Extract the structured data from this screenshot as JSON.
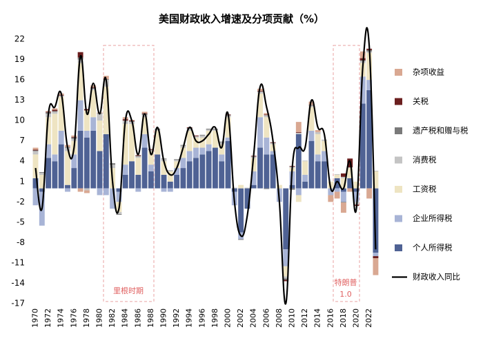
{
  "chart_data": {
    "type": "bar",
    "title": "美国财政收入增速及分项贡献（%）",
    "x": [
      1970,
      1971,
      1972,
      1973,
      1974,
      1975,
      1976,
      1977,
      1978,
      1979,
      1980,
      1981,
      1982,
      1983,
      1984,
      1985,
      1986,
      1987,
      1988,
      1989,
      1990,
      1991,
      1992,
      1993,
      1994,
      1995,
      1996,
      1997,
      1998,
      1999,
      2000,
      2001,
      2002,
      2003,
      2004,
      2005,
      2006,
      2007,
      2008,
      2009,
      2010,
      2011,
      2012,
      2013,
      2014,
      2015,
      2016,
      2017,
      2018,
      2019,
      2020,
      2021,
      2022,
      2023
    ],
    "xlim": [
      1969.3,
      2023.6
    ],
    "xticks": [
      1970,
      1972,
      1974,
      1976,
      1978,
      1980,
      1982,
      1984,
      1986,
      1988,
      1990,
      1992,
      1994,
      1996,
      1998,
      2000,
      2002,
      2004,
      2006,
      2008,
      2010,
      2012,
      2014,
      2016,
      2018,
      2020,
      2022
    ],
    "ylim": [
      -17,
      22
    ],
    "yticks": [
      22,
      19,
      16,
      13,
      10,
      7,
      4,
      1,
      -2,
      -5,
      -8,
      -11,
      -14,
      -17
    ],
    "stacked": true,
    "series": [
      {
        "name": "杂项收益",
        "color": "#d9a892",
        "values": [
          0.3,
          0,
          0.1,
          0.2,
          0.2,
          0.3,
          0.2,
          -0.5,
          -0.4,
          0.3,
          0.1,
          0.5,
          0,
          0,
          0.3,
          0.1,
          0,
          0.2,
          0,
          0,
          0,
          0,
          0,
          0,
          0,
          0,
          0,
          0,
          0,
          0,
          0,
          0,
          0,
          0,
          0,
          0.3,
          0.2,
          0,
          0,
          0,
          0,
          1.5,
          0,
          0.5,
          0.3,
          0,
          -1,
          -1,
          -1.5,
          -0.5,
          0,
          1,
          -1.5,
          -2.5
        ]
      },
      {
        "name": "关税",
        "color": "#6b1f1f",
        "values": [
          0.1,
          0,
          0.1,
          0.2,
          0.1,
          0,
          0.1,
          0.8,
          0.2,
          0.1,
          0,
          0,
          0,
          0,
          0.2,
          0.1,
          0.1,
          0.1,
          0.1,
          0,
          0,
          0,
          0,
          0,
          0.1,
          0.1,
          0,
          0,
          0,
          0,
          0.1,
          0,
          0,
          0,
          0.1,
          0.1,
          0.1,
          0.1,
          0,
          -0.2,
          0.1,
          0.1,
          0,
          0,
          0,
          0,
          0,
          0,
          0.5,
          1.3,
          -0.2,
          0.3,
          0.2,
          -0.3
        ]
      },
      {
        "name": "遗产税和赠与税",
        "color": "#7a7a7a",
        "values": [
          0.1,
          0.1,
          0.2,
          0.1,
          0,
          0.1,
          0.2,
          0.3,
          0,
          0.1,
          0.1,
          0.1,
          0.2,
          -0.1,
          0,
          0.1,
          0.1,
          0.2,
          0,
          0.1,
          0.1,
          0,
          0.1,
          0.1,
          0.1,
          0,
          0.1,
          0.1,
          0.1,
          0.1,
          0.1,
          0,
          -0.1,
          0,
          0,
          0,
          -0.1,
          0,
          0,
          -0.2,
          -0.2,
          0,
          0,
          0.1,
          0,
          0,
          0,
          0,
          -0.1,
          0,
          0,
          0.1,
          0.2,
          0
        ]
      },
      {
        "name": "消费税",
        "color": "#c4c4c4",
        "values": [
          0.5,
          0.3,
          0.5,
          0.3,
          0.2,
          0.5,
          0.3,
          0.5,
          -0.3,
          0.2,
          1,
          1,
          0.5,
          -0.3,
          0.5,
          0.3,
          0.2,
          0.3,
          0.2,
          0.2,
          0.3,
          0.2,
          0.2,
          0.3,
          0.3,
          0.2,
          0.3,
          0.2,
          0.2,
          0.3,
          0.2,
          0.1,
          0,
          0.1,
          0.2,
          0.3,
          0.3,
          0.2,
          0,
          -0.3,
          0.2,
          0.2,
          0.1,
          0.2,
          0.3,
          0.2,
          0,
          0.1,
          0.2,
          0.1,
          -0.4,
          0.3,
          0.2,
          0.1
        ]
      },
      {
        "name": "工资税",
        "color": "#eee4c2",
        "values": [
          3.5,
          2,
          4,
          6,
          5,
          5,
          2,
          5.5,
          3,
          4,
          4.5,
          7,
          3,
          -1.5,
          6,
          5.5,
          2.5,
          2.5,
          2,
          3.5,
          2,
          1.5,
          1,
          1.5,
          3,
          1.5,
          1.5,
          2,
          2.5,
          1.5,
          3,
          0,
          0.5,
          0,
          2,
          3.5,
          3,
          1,
          0.5,
          -1.5,
          0.5,
          -1,
          2,
          3.5,
          3,
          1.5,
          1,
          0.5,
          1.5,
          1.5,
          1,
          2,
          4,
          2.5
        ]
      },
      {
        "name": "企业所得税",
        "color": "#a8b4d6",
        "values": [
          -2.5,
          -5,
          2,
          1,
          2,
          -0.5,
          2,
          4.5,
          1,
          2,
          -1,
          -1,
          -3,
          -1.5,
          1.5,
          0,
          -0.5,
          2,
          1,
          0,
          -0.5,
          -0.5,
          1,
          1.5,
          1.5,
          1.5,
          1,
          1,
          0,
          1,
          0.5,
          -2,
          -1,
          0,
          2,
          4.5,
          2.5,
          0.5,
          -2,
          -2.5,
          2,
          -1,
          1,
          1.5,
          1,
          1.5,
          -1,
          -0.5,
          -1.5,
          0,
          -1.5,
          4,
          1.5,
          -0.5
        ]
      },
      {
        "name": "个人所得税",
        "color": "#4f6294",
        "values": [
          1.5,
          -0.5,
          4.5,
          4,
          6.5,
          0.5,
          3,
          8.5,
          7.5,
          8.5,
          5.5,
          8,
          0,
          -0.5,
          2,
          4,
          2,
          6,
          2.5,
          5,
          2,
          1,
          2,
          3,
          4,
          4.5,
          5,
          5.5,
          6,
          4,
          7,
          -0.5,
          -6.5,
          -3,
          0.5,
          6,
          5,
          5,
          0,
          -9,
          0.5,
          8,
          1,
          7,
          4,
          4,
          0,
          1.5,
          -0.5,
          1.5,
          -0.5,
          12.5,
          14.5,
          -9.5
        ]
      },
      {
        "name": "财政收入同比",
        "type": "line",
        "color": "#000000",
        "values": [
          3,
          -3,
          11,
          12,
          14,
          6,
          6,
          19.5,
          11,
          15.5,
          11,
          16,
          1,
          -3,
          10,
          10,
          5,
          11,
          5,
          9,
          4,
          2,
          3,
          6,
          9,
          7,
          7,
          8,
          9,
          6,
          11,
          -2,
          -7,
          -4,
          5,
          15,
          12,
          7,
          -2,
          -17,
          3,
          6,
          6,
          13,
          9,
          8,
          0,
          1,
          0,
          4,
          -3,
          18,
          21,
          -9
        ]
      }
    ],
    "annotations": [
      "里根时期",
      "特朗普",
      "1.0"
    ]
  }
}
